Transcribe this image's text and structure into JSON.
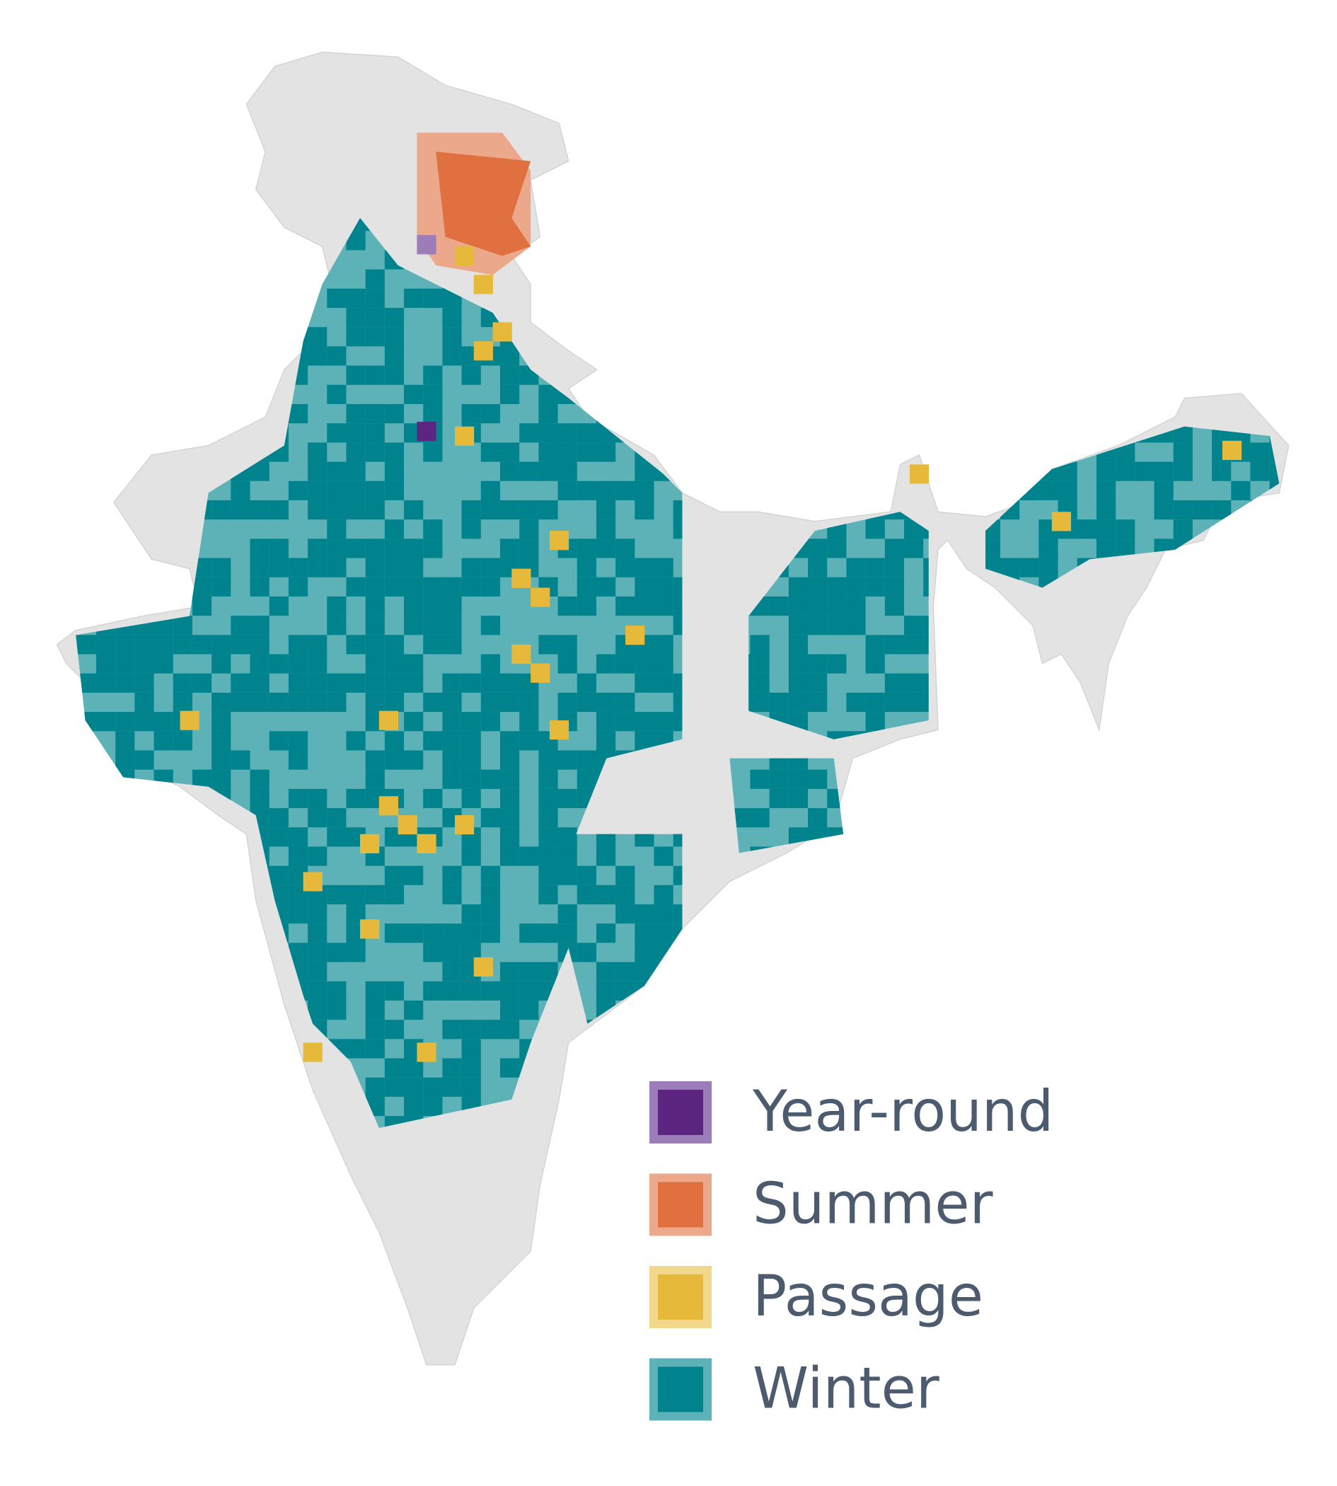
{
  "legend": {
    "items": [
      {
        "label": "Year-round",
        "color": "#5b2580",
        "border": "#9c7db9"
      },
      {
        "label": "Summer",
        "color": "#e0703f",
        "border": "#eba88b"
      },
      {
        "label": "Passage",
        "color": "#e6b93a",
        "border": "#f1d88c"
      },
      {
        "label": "Winter",
        "color": "#00838d",
        "border": "#5db2b8"
      }
    ]
  }
}
